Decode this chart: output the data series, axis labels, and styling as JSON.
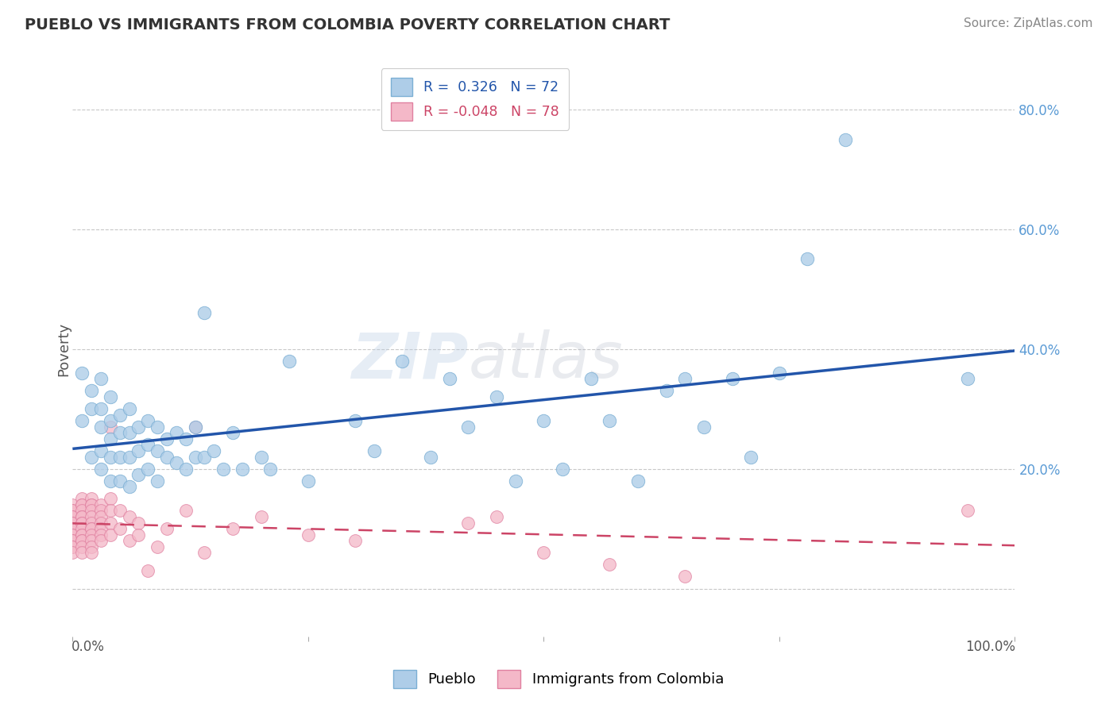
{
  "title": "PUEBLO VS IMMIGRANTS FROM COLOMBIA POVERTY CORRELATION CHART",
  "source": "Source: ZipAtlas.com",
  "ylabel": "Poverty",
  "watermark_zip": "ZIP",
  "watermark_atlas": "atlas",
  "series1_label": "Pueblo",
  "series2_label": "Immigrants from Colombia",
  "series1_R": "0.326",
  "series1_N": "72",
  "series2_R": "-0.048",
  "series2_N": "78",
  "series1_color": "#aecde8",
  "series1_edge": "#7bafd4",
  "series2_color": "#f4b8c8",
  "series2_edge": "#e080a0",
  "trendline1_color": "#2255aa",
  "trendline2_color": "#cc4466",
  "background_color": "#ffffff",
  "grid_color": "#c8c8c8",
  "ytick_labels": [
    "",
    "20.0%",
    "40.0%",
    "60.0%",
    "80.0%"
  ],
  "ytick_values": [
    0.0,
    0.2,
    0.4,
    0.6,
    0.8
  ],
  "xlim": [
    0.0,
    1.0
  ],
  "ylim": [
    -0.08,
    0.88
  ],
  "pueblo_x": [
    0.01,
    0.01,
    0.02,
    0.02,
    0.02,
    0.03,
    0.03,
    0.03,
    0.03,
    0.03,
    0.04,
    0.04,
    0.04,
    0.04,
    0.04,
    0.05,
    0.05,
    0.05,
    0.05,
    0.06,
    0.06,
    0.06,
    0.06,
    0.07,
    0.07,
    0.07,
    0.08,
    0.08,
    0.08,
    0.09,
    0.09,
    0.09,
    0.1,
    0.1,
    0.11,
    0.11,
    0.12,
    0.12,
    0.13,
    0.13,
    0.14,
    0.14,
    0.15,
    0.16,
    0.17,
    0.18,
    0.2,
    0.21,
    0.23,
    0.25,
    0.3,
    0.32,
    0.35,
    0.38,
    0.4,
    0.42,
    0.45,
    0.47,
    0.5,
    0.52,
    0.55,
    0.57,
    0.6,
    0.63,
    0.65,
    0.67,
    0.7,
    0.72,
    0.75,
    0.78,
    0.82,
    0.95
  ],
  "pueblo_y": [
    0.36,
    0.28,
    0.33,
    0.3,
    0.22,
    0.35,
    0.3,
    0.27,
    0.23,
    0.2,
    0.32,
    0.28,
    0.25,
    0.22,
    0.18,
    0.29,
    0.26,
    0.22,
    0.18,
    0.3,
    0.26,
    0.22,
    0.17,
    0.27,
    0.23,
    0.19,
    0.28,
    0.24,
    0.2,
    0.27,
    0.23,
    0.18,
    0.25,
    0.22,
    0.26,
    0.21,
    0.25,
    0.2,
    0.27,
    0.22,
    0.46,
    0.22,
    0.23,
    0.2,
    0.26,
    0.2,
    0.22,
    0.2,
    0.38,
    0.18,
    0.28,
    0.23,
    0.38,
    0.22,
    0.35,
    0.27,
    0.32,
    0.18,
    0.28,
    0.2,
    0.35,
    0.28,
    0.18,
    0.33,
    0.35,
    0.27,
    0.35,
    0.22,
    0.36,
    0.55,
    0.75,
    0.35
  ],
  "colombia_x": [
    0.0,
    0.0,
    0.0,
    0.0,
    0.0,
    0.0,
    0.0,
    0.0,
    0.0,
    0.0,
    0.0,
    0.0,
    0.0,
    0.0,
    0.0,
    0.0,
    0.0,
    0.01,
    0.01,
    0.01,
    0.01,
    0.01,
    0.01,
    0.01,
    0.01,
    0.01,
    0.01,
    0.01,
    0.01,
    0.01,
    0.01,
    0.01,
    0.02,
    0.02,
    0.02,
    0.02,
    0.02,
    0.02,
    0.02,
    0.02,
    0.02,
    0.02,
    0.02,
    0.02,
    0.03,
    0.03,
    0.03,
    0.03,
    0.03,
    0.03,
    0.03,
    0.04,
    0.04,
    0.04,
    0.04,
    0.04,
    0.05,
    0.05,
    0.06,
    0.06,
    0.07,
    0.07,
    0.08,
    0.09,
    0.1,
    0.12,
    0.13,
    0.14,
    0.17,
    0.2,
    0.25,
    0.3,
    0.42,
    0.45,
    0.5,
    0.57,
    0.65,
    0.95
  ],
  "colombia_y": [
    0.14,
    0.13,
    0.13,
    0.12,
    0.12,
    0.11,
    0.11,
    0.1,
    0.1,
    0.1,
    0.09,
    0.09,
    0.08,
    0.08,
    0.07,
    0.07,
    0.06,
    0.15,
    0.14,
    0.14,
    0.13,
    0.12,
    0.12,
    0.11,
    0.11,
    0.1,
    0.09,
    0.09,
    0.08,
    0.08,
    0.07,
    0.06,
    0.15,
    0.14,
    0.14,
    0.13,
    0.12,
    0.11,
    0.1,
    0.1,
    0.09,
    0.08,
    0.07,
    0.06,
    0.14,
    0.13,
    0.12,
    0.11,
    0.1,
    0.09,
    0.08,
    0.27,
    0.15,
    0.13,
    0.11,
    0.09,
    0.13,
    0.1,
    0.12,
    0.08,
    0.11,
    0.09,
    0.03,
    0.07,
    0.1,
    0.13,
    0.27,
    0.06,
    0.1,
    0.12,
    0.09,
    0.08,
    0.11,
    0.12,
    0.06,
    0.04,
    0.02,
    0.13
  ]
}
